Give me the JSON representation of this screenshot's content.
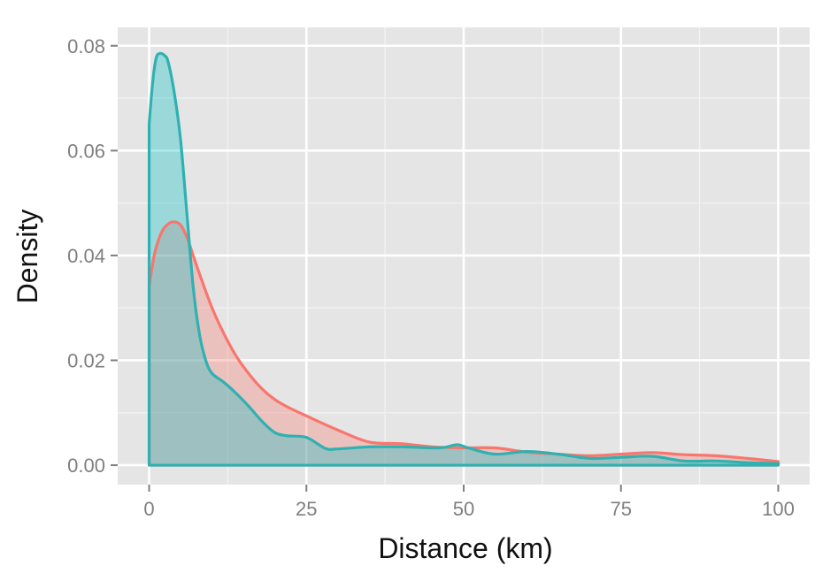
{
  "chart_data": {
    "type": "area",
    "title": "",
    "xlabel": "Distance (km)",
    "ylabel": "Density",
    "xlim": [
      -5,
      105
    ],
    "ylim": [
      -0.0037,
      0.0835
    ],
    "x_ticks": [
      0,
      25,
      50,
      75,
      100
    ],
    "x_tick_labels": [
      "0",
      "25",
      "50",
      "75",
      "100"
    ],
    "y_ticks": [
      0,
      0.02,
      0.04,
      0.06,
      0.08
    ],
    "y_tick_labels": [
      "0.00",
      "0.02",
      "0.04",
      "0.06",
      "0.08"
    ],
    "grid": true,
    "legend": "none",
    "colors": {
      "panel_bg": "#e5e5e5",
      "grid_major": "#ffffff",
      "grid_minor": "#f2f2f2",
      "series_1_line": "#f8766d",
      "series_1_fill": "#f8766d",
      "series_2_line": "#2fb1b1",
      "series_2_fill": "#00bfc4"
    },
    "series": [
      {
        "x": [
          0,
          0.5,
          1,
          2,
          3,
          4,
          5,
          6,
          7,
          8,
          10,
          12,
          14,
          16,
          18,
          20,
          22,
          25,
          30,
          35,
          40,
          45,
          50,
          55,
          60,
          65,
          70,
          75,
          80,
          85,
          90,
          95,
          100
        ],
        "values": [
          0.034,
          0.038,
          0.041,
          0.0445,
          0.046,
          0.0464,
          0.0458,
          0.0435,
          0.04,
          0.0365,
          0.03,
          0.0248,
          0.0205,
          0.0172,
          0.0145,
          0.0125,
          0.0111,
          0.0094,
          0.0067,
          0.0044,
          0.0041,
          0.0035,
          0.0033,
          0.0033,
          0.0025,
          0.0021,
          0.0018,
          0.0021,
          0.0024,
          0.002,
          0.0018,
          0.0013,
          0.0007
        ]
      },
      {
        "x": [
          0,
          0.4,
          0.8,
          1.2,
          1.6,
          2,
          2.4,
          3,
          4,
          5,
          6,
          7,
          8,
          9,
          10,
          12,
          14,
          16,
          18,
          20,
          22,
          25,
          28,
          30,
          35,
          40,
          45,
          47,
          49,
          51,
          55,
          60,
          65,
          70,
          75,
          80,
          85,
          90,
          95,
          100
        ],
        "values": [
          0.065,
          0.071,
          0.0755,
          0.078,
          0.0785,
          0.0785,
          0.0782,
          0.077,
          0.071,
          0.062,
          0.048,
          0.034,
          0.025,
          0.02,
          0.0175,
          0.0157,
          0.0135,
          0.011,
          0.0083,
          0.0062,
          0.0056,
          0.0053,
          0.0032,
          0.0031,
          0.0035,
          0.0035,
          0.0033,
          0.0034,
          0.0039,
          0.0032,
          0.0021,
          0.0026,
          0.0021,
          0.0013,
          0.0015,
          0.0017,
          0.0008,
          0.0008,
          0.0005,
          0.0003
        ]
      }
    ]
  }
}
